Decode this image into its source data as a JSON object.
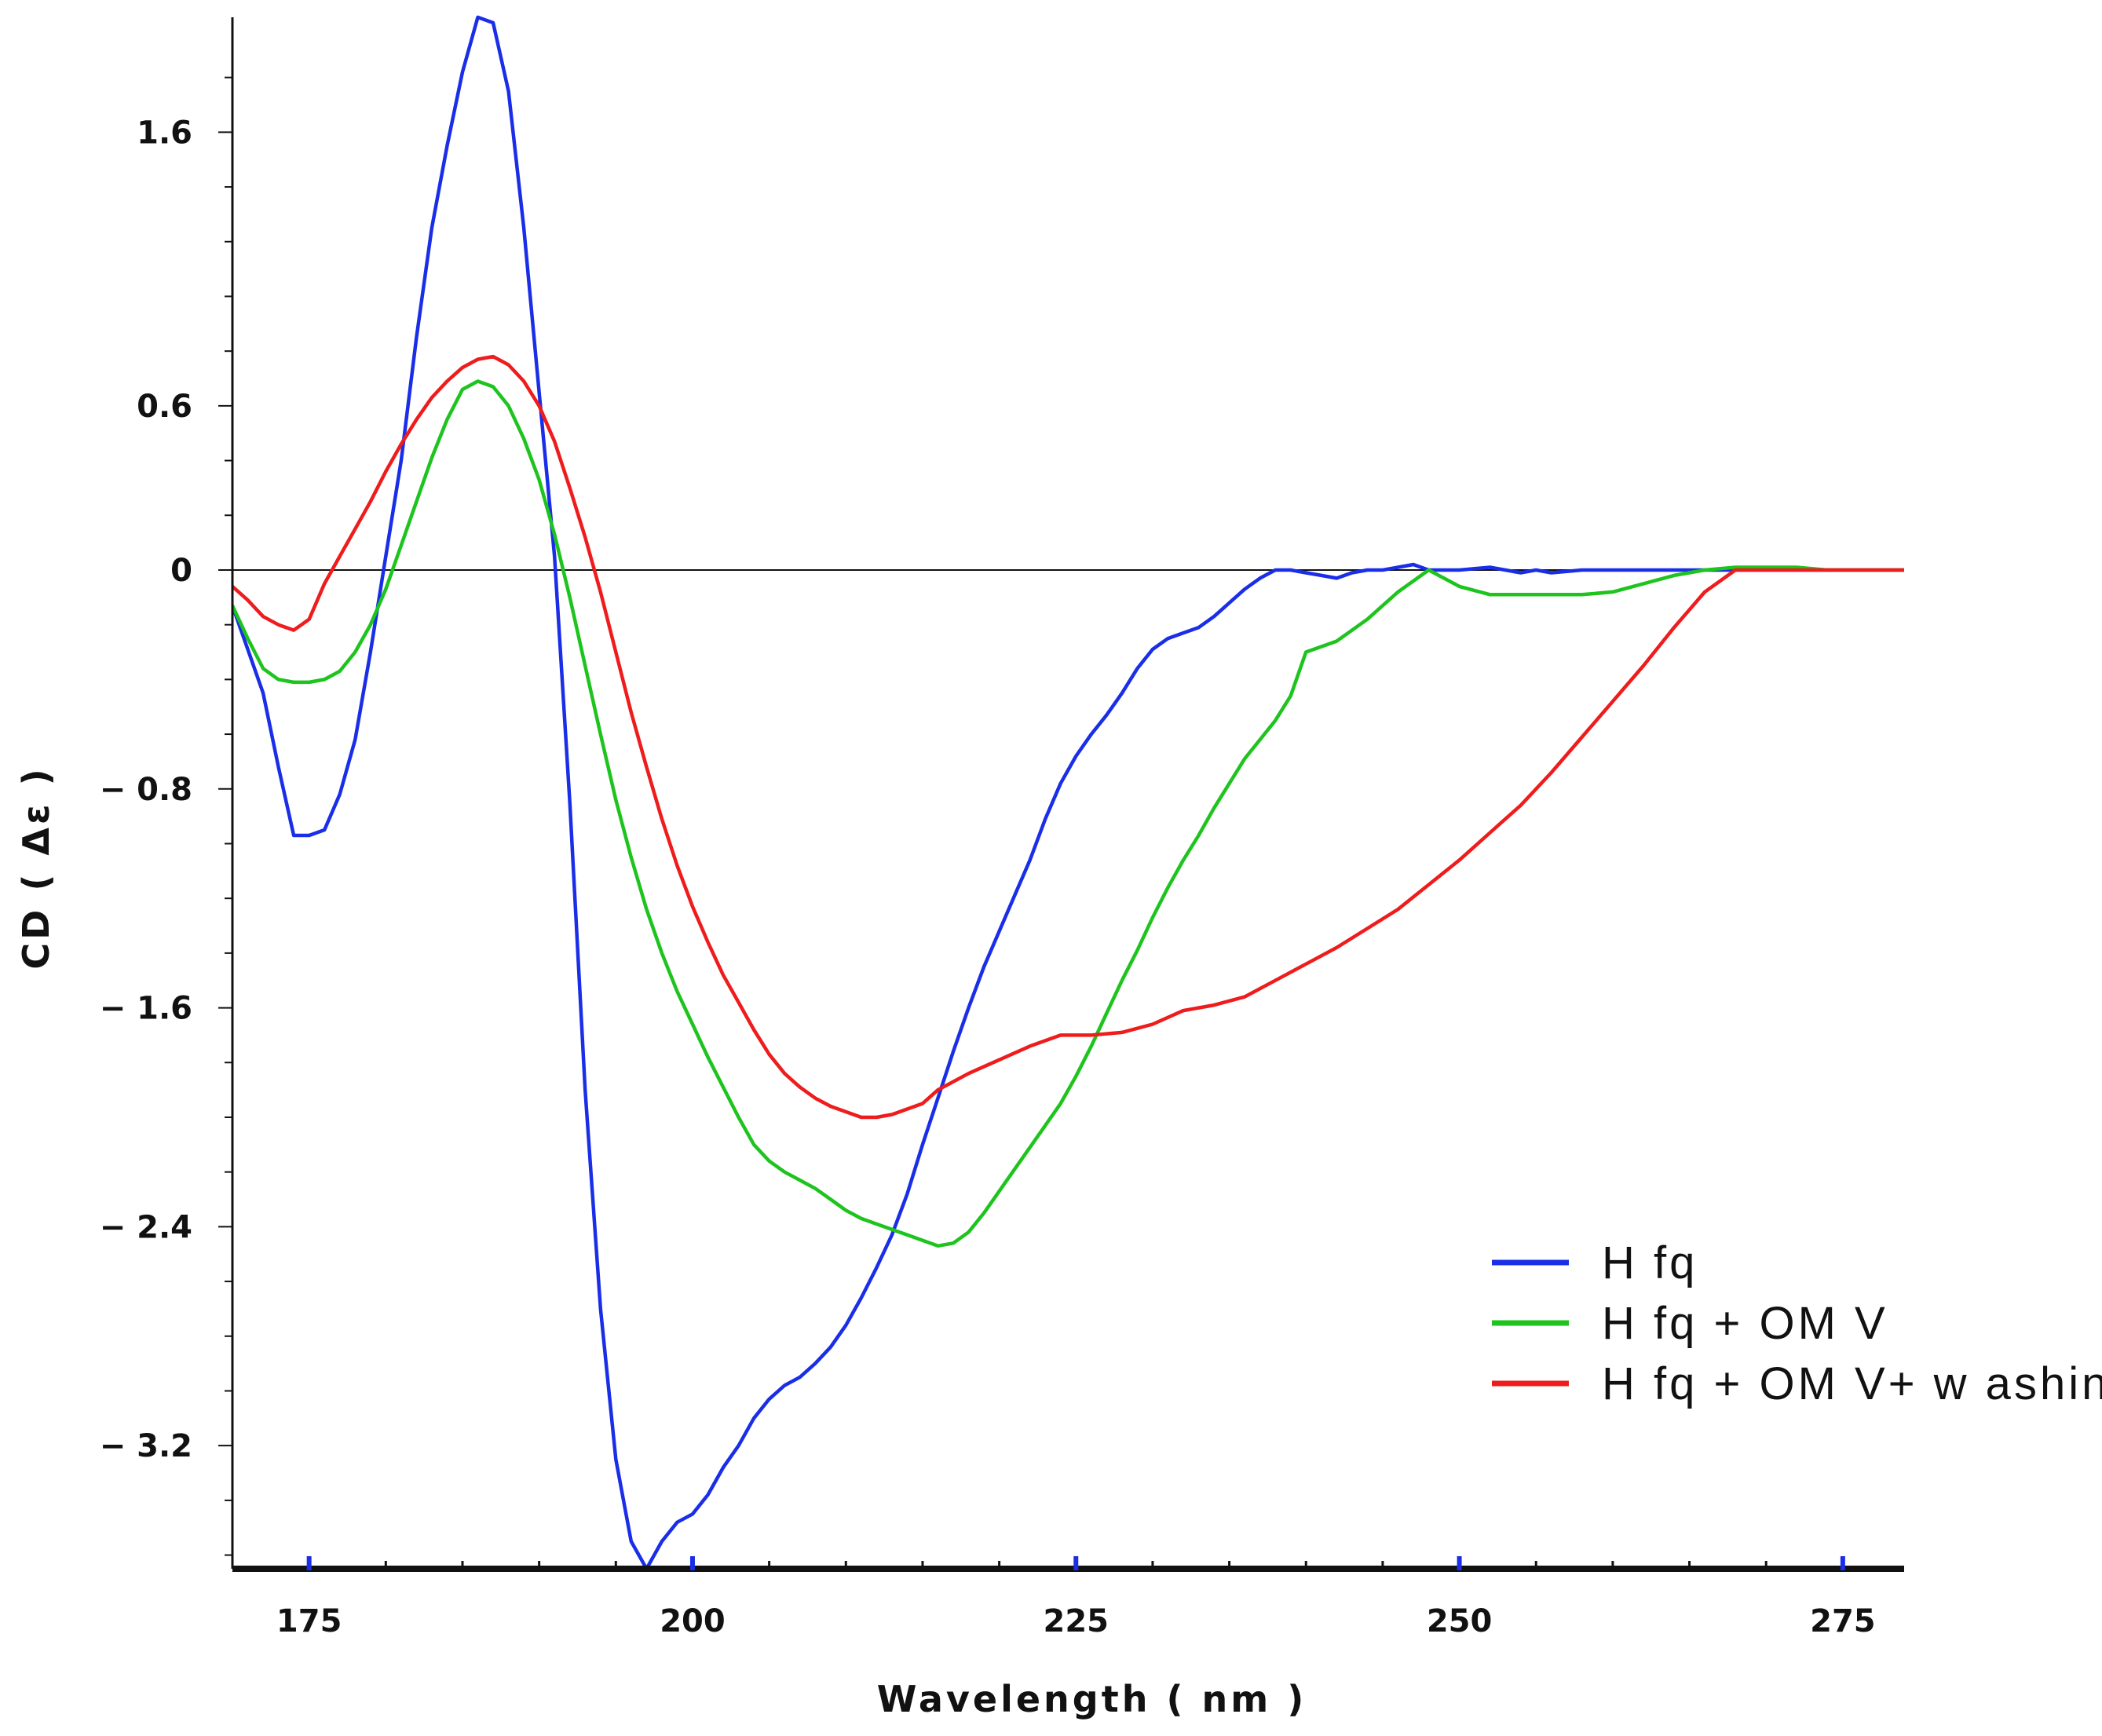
{
  "chart_data": {
    "type": "line",
    "title": "",
    "xlabel": "Wavelength ( nm )",
    "ylabel": "CD ( Δε )",
    "xlim": [
      170,
      279
    ],
    "ylim": [
      -3.65,
      2.02
    ],
    "x_ticks": [
      175,
      200,
      225,
      250,
      275
    ],
    "x_tick_labels": [
      "175",
      "200",
      "225",
      "250",
      "275"
    ],
    "y_ticks": [
      1.6,
      0.6,
      0,
      -0.8,
      -1.6,
      -2.4,
      -3.2
    ],
    "y_tick_labels": [
      "1.6",
      "0.6",
      "0",
      "− 0.8",
      "− 1.6",
      "− 2.4",
      "− 3.2"
    ],
    "zero_line": true,
    "legend_position": "bottom-right",
    "series": [
      {
        "name": "H fq",
        "color": "#1a2ee8",
        "x": [
          170,
          172,
          173,
          174,
          175,
          176,
          177,
          178,
          179,
          180,
          181,
          182,
          183,
          184,
          185,
          186,
          187,
          188,
          189,
          190,
          191,
          192,
          193,
          194,
          195,
          196,
          197,
          198,
          199,
          200,
          201,
          202,
          203,
          204,
          205,
          206,
          207,
          208,
          209,
          210,
          211,
          212,
          213,
          214,
          215,
          216,
          217,
          218,
          219,
          220,
          221,
          222,
          223,
          224,
          225,
          226,
          227,
          228,
          229,
          230,
          231,
          232,
          233,
          234,
          235,
          236,
          237,
          238,
          239,
          240,
          241,
          242,
          243,
          244,
          245,
          246,
          247,
          248,
          249,
          250,
          252,
          254,
          255,
          256,
          258,
          260,
          261,
          262,
          263,
          264,
          265,
          266,
          267,
          268,
          269,
          270,
          271,
          272,
          273,
          274,
          275,
          276,
          277,
          278,
          279
        ],
        "y": [
          -0.13,
          -0.45,
          -0.72,
          -0.97,
          -0.97,
          -0.95,
          -0.82,
          -0.62,
          -0.3,
          0.05,
          0.4,
          0.85,
          1.25,
          1.55,
          1.82,
          2.02,
          2.0,
          1.75,
          1.25,
          0.65,
          0.05,
          -0.85,
          -1.9,
          -2.7,
          -3.25,
          -3.55,
          -3.65,
          -3.55,
          -3.48,
          -3.45,
          -3.38,
          -3.28,
          -3.2,
          -3.1,
          -3.03,
          -2.98,
          -2.95,
          -2.9,
          -2.84,
          -2.76,
          -2.66,
          -2.55,
          -2.43,
          -2.28,
          -2.1,
          -1.93,
          -1.76,
          -1.6,
          -1.45,
          -1.32,
          -1.19,
          -1.06,
          -0.91,
          -0.78,
          -0.68,
          -0.6,
          -0.53,
          -0.45,
          -0.36,
          -0.29,
          -0.25,
          -0.23,
          -0.21,
          -0.17,
          -0.12,
          -0.07,
          -0.03,
          0.0,
          0.0,
          -0.01,
          -0.02,
          -0.03,
          -0.01,
          0.0,
          0.0,
          0.01,
          0.02,
          0.0,
          0.0,
          0.0,
          0.01,
          -0.01,
          0.0,
          -0.01,
          0.0,
          0.0,
          0.0,
          0.0,
          0.0,
          0.0,
          0.0,
          0.0,
          0.0,
          0.0,
          0.0,
          0.0,
          0.0,
          0.0,
          0.0,
          0.0,
          0.0,
          0.0,
          0.0,
          0.0,
          0.0
        ]
      },
      {
        "name": "H fq + OM V",
        "color": "#1ec41e",
        "x": [
          170,
          171,
          172,
          173,
          174,
          175,
          176,
          177,
          178,
          179,
          180,
          181,
          182,
          183,
          184,
          185,
          186,
          187,
          188,
          189,
          190,
          191,
          192,
          193,
          194,
          195,
          196,
          197,
          198,
          199,
          200,
          201,
          202,
          203,
          204,
          205,
          206,
          207,
          208,
          209,
          210,
          211,
          212,
          213,
          214,
          215,
          216,
          217,
          218,
          219,
          220,
          221,
          222,
          223,
          224,
          225,
          226,
          227,
          228,
          229,
          230,
          231,
          232,
          233,
          234,
          235,
          236,
          237,
          238,
          239,
          240,
          242,
          244,
          246,
          248,
          250,
          252,
          254,
          256,
          258,
          260,
          262,
          264,
          266,
          268,
          270,
          272,
          274,
          276,
          278,
          279
        ],
        "y": [
          -0.13,
          -0.25,
          -0.36,
          -0.4,
          -0.41,
          -0.41,
          -0.4,
          -0.37,
          -0.3,
          -0.2,
          -0.07,
          0.09,
          0.25,
          0.41,
          0.55,
          0.66,
          0.69,
          0.67,
          0.6,
          0.48,
          0.33,
          0.13,
          -0.1,
          -0.35,
          -0.6,
          -0.84,
          -1.05,
          -1.24,
          -1.4,
          -1.54,
          -1.66,
          -1.78,
          -1.89,
          -2.0,
          -2.1,
          -2.16,
          -2.2,
          -2.23,
          -2.26,
          -2.3,
          -2.34,
          -2.37,
          -2.39,
          -2.41,
          -2.43,
          -2.45,
          -2.47,
          -2.46,
          -2.42,
          -2.35,
          -2.27,
          -2.19,
          -2.11,
          -2.03,
          -1.95,
          -1.85,
          -1.74,
          -1.62,
          -1.5,
          -1.39,
          -1.27,
          -1.16,
          -1.06,
          -0.97,
          -0.87,
          -0.78,
          -0.69,
          -0.62,
          -0.55,
          -0.46,
          -0.3,
          -0.26,
          -0.18,
          -0.08,
          0.0,
          -0.06,
          -0.09,
          -0.09,
          -0.09,
          -0.09,
          -0.08,
          -0.05,
          -0.02,
          0.0,
          0.01,
          0.01,
          0.01,
          0.0,
          0.0,
          0.0,
          0.0
        ]
      },
      {
        "name": "H fq + OM V+ w ashing",
        "color": "#ee1c1c",
        "x": [
          170,
          171,
          172,
          173,
          174,
          175,
          176,
          177,
          178,
          179,
          180,
          181,
          182,
          183,
          184,
          185,
          186,
          187,
          188,
          189,
          190,
          191,
          192,
          193,
          194,
          195,
          196,
          197,
          198,
          199,
          200,
          201,
          202,
          203,
          204,
          205,
          206,
          207,
          208,
          209,
          210,
          211,
          212,
          213,
          214,
          215,
          216,
          218,
          220,
          222,
          224,
          226,
          228,
          230,
          232,
          234,
          236,
          238,
          240,
          242,
          244,
          246,
          248,
          250,
          252,
          254,
          256,
          258,
          260,
          262,
          264,
          266,
          268,
          270,
          272,
          274,
          276,
          278,
          279
        ],
        "y": [
          -0.06,
          -0.11,
          -0.17,
          -0.2,
          -0.22,
          -0.18,
          -0.05,
          0.05,
          0.15,
          0.25,
          0.36,
          0.46,
          0.55,
          0.63,
          0.69,
          0.74,
          0.77,
          0.78,
          0.75,
          0.69,
          0.6,
          0.47,
          0.3,
          0.12,
          -0.08,
          -0.3,
          -0.52,
          -0.72,
          -0.91,
          -1.08,
          -1.23,
          -1.36,
          -1.48,
          -1.58,
          -1.68,
          -1.77,
          -1.84,
          -1.89,
          -1.93,
          -1.96,
          -1.98,
          -2.0,
          -2.0,
          -1.99,
          -1.97,
          -1.95,
          -1.9,
          -1.84,
          -1.79,
          -1.74,
          -1.7,
          -1.7,
          -1.69,
          -1.66,
          -1.61,
          -1.59,
          -1.56,
          -1.5,
          -1.44,
          -1.38,
          -1.31,
          -1.24,
          -1.15,
          -1.06,
          -0.96,
          -0.86,
          -0.74,
          -0.61,
          -0.48,
          -0.35,
          -0.21,
          -0.08,
          0.0,
          0.0,
          0.0,
          0.0,
          0.0,
          0.0,
          0.0
        ]
      }
    ]
  }
}
